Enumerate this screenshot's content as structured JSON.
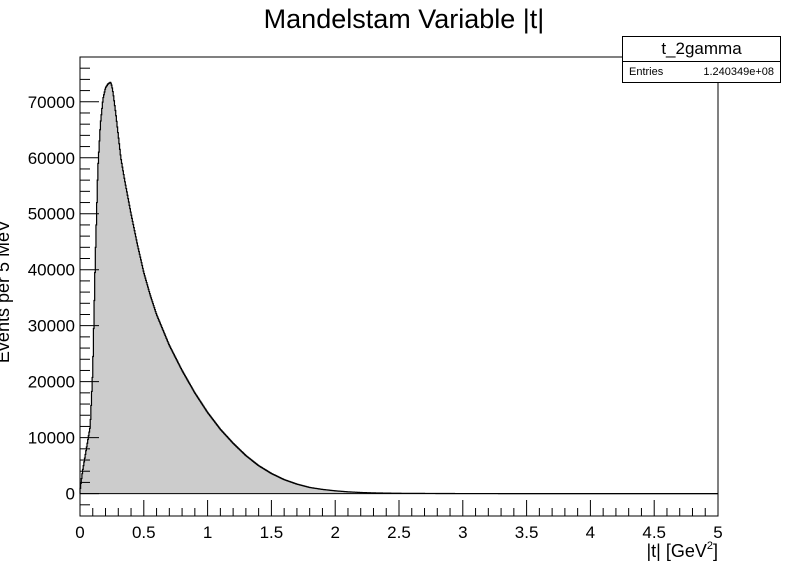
{
  "chart_data": {
    "type": "histogram",
    "title": "Mandelstam Variable |t|",
    "xlabel_main": "|t| [GeV",
    "xlabel_sup": "2",
    "xlabel_close": "]",
    "ylabel": "Events per 5 MeV",
    "xlim": [
      0,
      5
    ],
    "ylim": [
      -4000,
      78000
    ],
    "x_ticks": [
      "0",
      "0.5",
      "1",
      "1.5",
      "2",
      "2.5",
      "3",
      "3.5",
      "4",
      "4.5",
      "5"
    ],
    "y_ticks": [
      "0",
      "10000",
      "20000",
      "30000",
      "40000",
      "50000",
      "60000",
      "70000"
    ],
    "x": [
      0.0,
      0.02,
      0.05,
      0.08,
      0.1,
      0.12,
      0.14,
      0.16,
      0.18,
      0.2,
      0.22,
      0.24,
      0.25,
      0.26,
      0.28,
      0.3,
      0.32,
      0.35,
      0.4,
      0.45,
      0.5,
      0.55,
      0.6,
      0.7,
      0.8,
      0.9,
      1.0,
      1.1,
      1.2,
      1.3,
      1.4,
      1.5,
      1.6,
      1.7,
      1.8,
      1.9,
      2.0,
      2.1,
      2.2,
      2.3,
      2.4,
      2.5,
      2.6,
      2.7,
      2.8,
      2.9,
      3.0,
      3.5,
      4.0,
      4.5,
      5.0
    ],
    "values": [
      500,
      4000,
      8000,
      12000,
      22000,
      42000,
      58000,
      66000,
      70500,
      72500,
      73200,
      73500,
      72800,
      71500,
      68000,
      64000,
      60000,
      56000,
      50000,
      44500,
      39500,
      35500,
      32000,
      26500,
      22000,
      18000,
      14500,
      11500,
      9000,
      6800,
      5000,
      3600,
      2500,
      1700,
      1100,
      750,
      500,
      320,
      200,
      130,
      90,
      60,
      45,
      35,
      25,
      15,
      10,
      0,
      0,
      0,
      0
    ],
    "fill_color": "#cccccc",
    "line_color": "#000000",
    "grid": false
  },
  "stats": {
    "name": "t_2gamma",
    "entries_label": "Entries",
    "entries_value": "1.240349e+08"
  }
}
